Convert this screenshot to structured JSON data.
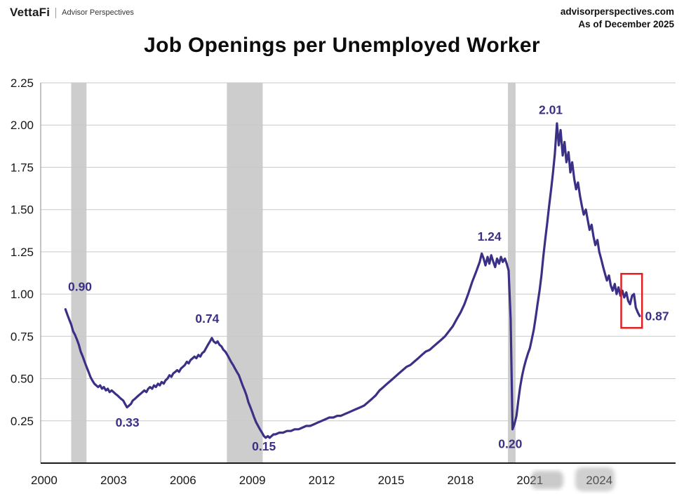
{
  "header": {
    "brand": "VettaFi",
    "brand_sub": "Advisor Perspectives",
    "site": "advisorperspectives.com",
    "as_of": "As of December 2025"
  },
  "title": "Job Openings per Unemployed Worker",
  "chart_data": {
    "type": "line",
    "title": "Job Openings per Unemployed Worker",
    "xlabel": "",
    "ylabel": "",
    "xlim": [
      1999.85,
      2027.3
    ],
    "ylim": [
      0,
      2.25
    ],
    "x_ticks": [
      2000,
      2003,
      2006,
      2009,
      2012,
      2015,
      2018,
      2021,
      2024
    ],
    "y_ticks": [
      0.25,
      0.5,
      0.75,
      1.0,
      1.25,
      1.5,
      1.75,
      2.0,
      2.25
    ],
    "grid": true,
    "legend": "none",
    "line_color": "#3a3186",
    "annotation_color": "#3a3186",
    "grid_color": "#c9c9c9",
    "axis_color": "#1a1a1a",
    "recession_band_color": "#cdcdcd",
    "highlight_color": "#e02020",
    "recessions": [
      [
        2001.17,
        2001.83
      ],
      [
        2007.9,
        2009.45
      ],
      [
        2020.05,
        2020.38
      ]
    ],
    "annotations": [
      {
        "label": "0.90",
        "x": 2001.55,
        "y": 1.02,
        "anchor": "middle"
      },
      {
        "label": "0.33",
        "x": 2003.6,
        "y": 0.215,
        "anchor": "middle"
      },
      {
        "label": "0.74",
        "x": 2007.05,
        "y": 0.83,
        "anchor": "middle"
      },
      {
        "label": "0.15",
        "x": 2009.5,
        "y": 0.075,
        "anchor": "middle"
      },
      {
        "label": "1.24",
        "x": 2019.25,
        "y": 1.315,
        "anchor": "middle"
      },
      {
        "label": "0.20",
        "x": 2020.15,
        "y": 0.09,
        "anchor": "middle"
      },
      {
        "label": "2.01",
        "x": 2021.9,
        "y": 2.065,
        "anchor": "middle"
      },
      {
        "label": "0.87",
        "x": 2025.98,
        "y": 0.845,
        "anchor": "start"
      }
    ],
    "highlight_box": {
      "x1": 2024.95,
      "y1": 0.8,
      "x2": 2025.85,
      "y2": 1.12
    },
    "series": [
      {
        "name": "Job Openings per Unemployed Worker",
        "points": [
          [
            2000.92,
            0.91
          ],
          [
            2001,
            0.88
          ],
          [
            2001.08,
            0.85
          ],
          [
            2001.17,
            0.82
          ],
          [
            2001.25,
            0.78
          ],
          [
            2001.33,
            0.76
          ],
          [
            2001.42,
            0.73
          ],
          [
            2001.5,
            0.7
          ],
          [
            2001.58,
            0.66
          ],
          [
            2001.67,
            0.63
          ],
          [
            2001.75,
            0.6
          ],
          [
            2001.83,
            0.57
          ],
          [
            2001.92,
            0.54
          ],
          [
            2002,
            0.51
          ],
          [
            2002.08,
            0.49
          ],
          [
            2002.17,
            0.47
          ],
          [
            2002.25,
            0.46
          ],
          [
            2002.33,
            0.45
          ],
          [
            2002.42,
            0.46
          ],
          [
            2002.5,
            0.44
          ],
          [
            2002.58,
            0.45
          ],
          [
            2002.67,
            0.43
          ],
          [
            2002.75,
            0.44
          ],
          [
            2002.83,
            0.42
          ],
          [
            2002.92,
            0.43
          ],
          [
            2003,
            0.42
          ],
          [
            2003.08,
            0.41
          ],
          [
            2003.17,
            0.4
          ],
          [
            2003.25,
            0.39
          ],
          [
            2003.33,
            0.38
          ],
          [
            2003.42,
            0.37
          ],
          [
            2003.5,
            0.35
          ],
          [
            2003.58,
            0.33
          ],
          [
            2003.67,
            0.34
          ],
          [
            2003.75,
            0.35
          ],
          [
            2003.83,
            0.37
          ],
          [
            2003.92,
            0.38
          ],
          [
            2004,
            0.39
          ],
          [
            2004.08,
            0.4
          ],
          [
            2004.17,
            0.41
          ],
          [
            2004.25,
            0.42
          ],
          [
            2004.33,
            0.43
          ],
          [
            2004.42,
            0.42
          ],
          [
            2004.5,
            0.44
          ],
          [
            2004.58,
            0.45
          ],
          [
            2004.67,
            0.44
          ],
          [
            2004.75,
            0.46
          ],
          [
            2004.83,
            0.45
          ],
          [
            2004.92,
            0.47
          ],
          [
            2005,
            0.46
          ],
          [
            2005.08,
            0.48
          ],
          [
            2005.17,
            0.47
          ],
          [
            2005.25,
            0.49
          ],
          [
            2005.33,
            0.5
          ],
          [
            2005.42,
            0.52
          ],
          [
            2005.5,
            0.51
          ],
          [
            2005.58,
            0.53
          ],
          [
            2005.67,
            0.54
          ],
          [
            2005.75,
            0.55
          ],
          [
            2005.83,
            0.54
          ],
          [
            2005.92,
            0.56
          ],
          [
            2006,
            0.57
          ],
          [
            2006.08,
            0.58
          ],
          [
            2006.17,
            0.6
          ],
          [
            2006.25,
            0.59
          ],
          [
            2006.33,
            0.61
          ],
          [
            2006.42,
            0.62
          ],
          [
            2006.5,
            0.63
          ],
          [
            2006.58,
            0.62
          ],
          [
            2006.67,
            0.64
          ],
          [
            2006.75,
            0.63
          ],
          [
            2006.83,
            0.65
          ],
          [
            2006.92,
            0.66
          ],
          [
            2007,
            0.68
          ],
          [
            2007.08,
            0.7
          ],
          [
            2007.17,
            0.72
          ],
          [
            2007.25,
            0.74
          ],
          [
            2007.33,
            0.72
          ],
          [
            2007.42,
            0.71
          ],
          [
            2007.5,
            0.72
          ],
          [
            2007.58,
            0.7
          ],
          [
            2007.67,
            0.69
          ],
          [
            2007.75,
            0.67
          ],
          [
            2007.83,
            0.66
          ],
          [
            2007.92,
            0.64
          ],
          [
            2008,
            0.62
          ],
          [
            2008.08,
            0.6
          ],
          [
            2008.17,
            0.58
          ],
          [
            2008.25,
            0.56
          ],
          [
            2008.33,
            0.54
          ],
          [
            2008.42,
            0.52
          ],
          [
            2008.5,
            0.49
          ],
          [
            2008.58,
            0.46
          ],
          [
            2008.67,
            0.43
          ],
          [
            2008.75,
            0.4
          ],
          [
            2008.83,
            0.36
          ],
          [
            2008.92,
            0.33
          ],
          [
            2009,
            0.3
          ],
          [
            2009.08,
            0.27
          ],
          [
            2009.17,
            0.24
          ],
          [
            2009.25,
            0.22
          ],
          [
            2009.33,
            0.2
          ],
          [
            2009.42,
            0.18
          ],
          [
            2009.5,
            0.16
          ],
          [
            2009.58,
            0.15
          ],
          [
            2009.67,
            0.16
          ],
          [
            2009.75,
            0.15
          ],
          [
            2009.83,
            0.16
          ],
          [
            2009.92,
            0.17
          ],
          [
            2010,
            0.17
          ],
          [
            2010.17,
            0.18
          ],
          [
            2010.33,
            0.18
          ],
          [
            2010.5,
            0.19
          ],
          [
            2010.67,
            0.19
          ],
          [
            2010.83,
            0.2
          ],
          [
            2011,
            0.2
          ],
          [
            2011.17,
            0.21
          ],
          [
            2011.33,
            0.22
          ],
          [
            2011.5,
            0.22
          ],
          [
            2011.67,
            0.23
          ],
          [
            2011.83,
            0.24
          ],
          [
            2012,
            0.25
          ],
          [
            2012.17,
            0.26
          ],
          [
            2012.33,
            0.27
          ],
          [
            2012.5,
            0.27
          ],
          [
            2012.67,
            0.28
          ],
          [
            2012.83,
            0.28
          ],
          [
            2013,
            0.29
          ],
          [
            2013.17,
            0.3
          ],
          [
            2013.33,
            0.31
          ],
          [
            2013.5,
            0.32
          ],
          [
            2013.67,
            0.33
          ],
          [
            2013.83,
            0.34
          ],
          [
            2014,
            0.36
          ],
          [
            2014.17,
            0.38
          ],
          [
            2014.33,
            0.4
          ],
          [
            2014.5,
            0.43
          ],
          [
            2014.67,
            0.45
          ],
          [
            2014.83,
            0.47
          ],
          [
            2015,
            0.49
          ],
          [
            2015.17,
            0.51
          ],
          [
            2015.33,
            0.53
          ],
          [
            2015.5,
            0.55
          ],
          [
            2015.67,
            0.57
          ],
          [
            2015.83,
            0.58
          ],
          [
            2016,
            0.6
          ],
          [
            2016.17,
            0.62
          ],
          [
            2016.33,
            0.64
          ],
          [
            2016.5,
            0.66
          ],
          [
            2016.67,
            0.67
          ],
          [
            2016.83,
            0.69
          ],
          [
            2017,
            0.71
          ],
          [
            2017.17,
            0.73
          ],
          [
            2017.33,
            0.75
          ],
          [
            2017.5,
            0.78
          ],
          [
            2017.67,
            0.81
          ],
          [
            2017.83,
            0.85
          ],
          [
            2018,
            0.89
          ],
          [
            2018.17,
            0.94
          ],
          [
            2018.33,
            1
          ],
          [
            2018.5,
            1.07
          ],
          [
            2018.67,
            1.13
          ],
          [
            2018.83,
            1.19
          ],
          [
            2018.92,
            1.24
          ],
          [
            2019,
            1.21
          ],
          [
            2019.08,
            1.17
          ],
          [
            2019.17,
            1.22
          ],
          [
            2019.25,
            1.18
          ],
          [
            2019.33,
            1.23
          ],
          [
            2019.42,
            1.19
          ],
          [
            2019.5,
            1.16
          ],
          [
            2019.58,
            1.21
          ],
          [
            2019.67,
            1.18
          ],
          [
            2019.75,
            1.22
          ],
          [
            2019.83,
            1.19
          ],
          [
            2019.92,
            1.21
          ],
          [
            2020,
            1.18
          ],
          [
            2020.08,
            1.14
          ],
          [
            2020.17,
            0.85
          ],
          [
            2020.25,
            0.2
          ],
          [
            2020.33,
            0.23
          ],
          [
            2020.42,
            0.28
          ],
          [
            2020.5,
            0.37
          ],
          [
            2020.58,
            0.45
          ],
          [
            2020.67,
            0.52
          ],
          [
            2020.75,
            0.57
          ],
          [
            2020.83,
            0.61
          ],
          [
            2020.92,
            0.65
          ],
          [
            2021,
            0.68
          ],
          [
            2021.08,
            0.73
          ],
          [
            2021.17,
            0.79
          ],
          [
            2021.25,
            0.86
          ],
          [
            2021.33,
            0.94
          ],
          [
            2021.42,
            1.02
          ],
          [
            2021.5,
            1.11
          ],
          [
            2021.58,
            1.22
          ],
          [
            2021.67,
            1.33
          ],
          [
            2021.75,
            1.42
          ],
          [
            2021.83,
            1.52
          ],
          [
            2021.92,
            1.62
          ],
          [
            2022,
            1.72
          ],
          [
            2022.08,
            1.83
          ],
          [
            2022.17,
            2.01
          ],
          [
            2022.25,
            1.88
          ],
          [
            2022.33,
            1.97
          ],
          [
            2022.42,
            1.82
          ],
          [
            2022.5,
            1.9
          ],
          [
            2022.58,
            1.78
          ],
          [
            2022.67,
            1.84
          ],
          [
            2022.75,
            1.72
          ],
          [
            2022.83,
            1.78
          ],
          [
            2022.92,
            1.68
          ],
          [
            2023,
            1.62
          ],
          [
            2023.08,
            1.66
          ],
          [
            2023.17,
            1.58
          ],
          [
            2023.25,
            1.52
          ],
          [
            2023.33,
            1.47
          ],
          [
            2023.42,
            1.5
          ],
          [
            2023.5,
            1.44
          ],
          [
            2023.58,
            1.38
          ],
          [
            2023.67,
            1.41
          ],
          [
            2023.75,
            1.34
          ],
          [
            2023.83,
            1.29
          ],
          [
            2023.92,
            1.32
          ],
          [
            2024,
            1.25
          ],
          [
            2024.08,
            1.21
          ],
          [
            2024.17,
            1.16
          ],
          [
            2024.25,
            1.12
          ],
          [
            2024.33,
            1.08
          ],
          [
            2024.42,
            1.11
          ],
          [
            2024.5,
            1.05
          ],
          [
            2024.58,
            1.02
          ],
          [
            2024.67,
            1.06
          ],
          [
            2024.75,
            1
          ],
          [
            2024.83,
            1.04
          ],
          [
            2024.92,
            0.99
          ],
          [
            2025,
            1.02
          ],
          [
            2025.08,
            0.98
          ],
          [
            2025.17,
            1.01
          ],
          [
            2025.25,
            0.96
          ],
          [
            2025.33,
            0.94
          ],
          [
            2025.42,
            0.99
          ],
          [
            2025.5,
            1
          ],
          [
            2025.58,
            0.92
          ],
          [
            2025.67,
            0.89
          ],
          [
            2025.75,
            0.87
          ]
        ]
      }
    ]
  }
}
